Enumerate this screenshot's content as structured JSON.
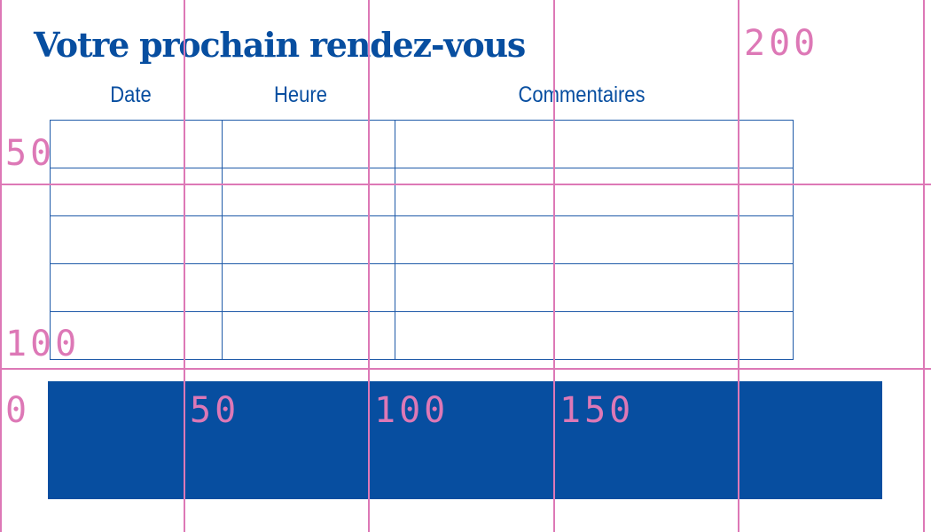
{
  "document": {
    "title": "Votre prochain rendez-vous",
    "columns": [
      "Date",
      "Heure",
      "Commentaires"
    ],
    "row_count_empty": 5,
    "accent_color": "#074ea0"
  },
  "grid_overlay": {
    "color": "#dd78b6",
    "x_labels": [
      "0",
      "50",
      "100",
      "150",
      "200"
    ],
    "y_labels": [
      "50",
      "100"
    ]
  }
}
